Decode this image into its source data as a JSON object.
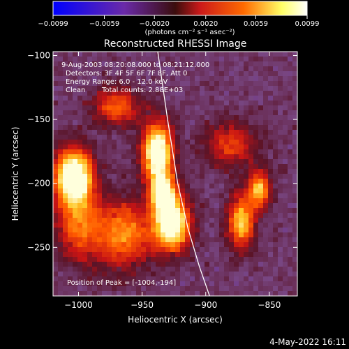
{
  "chart_data": {
    "type": "heatmap",
    "title": "Reconstructed RHESSI Image",
    "xlabel": "Heliocentric X (arcsec)",
    "ylabel": "Heliocentric Y (arcsec)",
    "xlim": [
      -1020,
      -828
    ],
    "ylim": [
      -288,
      -97
    ],
    "x_ticks": [
      -1000,
      -950,
      -900,
      -850
    ],
    "y_ticks": [
      -100,
      -150,
      -200,
      -250
    ],
    "x_tick_labels": [
      "−1000",
      "−950",
      "−900",
      "−850"
    ],
    "y_tick_labels": [
      "−100",
      "−150",
      "−200",
      "−250"
    ],
    "colorbar": {
      "range": [
        -0.0099,
        0.0099
      ],
      "ticks": [
        -0.0099,
        -0.0059,
        -0.002,
        0.002,
        0.0059,
        0.0099
      ],
      "tick_labels": [
        "−0.0099",
        "−0.0059",
        "−0.0020",
        "0.0020",
        "0.0059",
        "0.0099"
      ],
      "units_label": "(photons cm⁻² s⁻¹ asec⁻²)",
      "colors": [
        "#0000ff",
        "#6a2aa8",
        "#cc1a1a",
        "#ff6a00",
        "#ffff66",
        "#ffffff"
      ]
    },
    "annotations": [
      "9-Aug-2003 08:20:08.000 to 08:21:12.000",
      "Detectors: 3F 4F 5F 6F 7F 8F, Att 0",
      "Energy Range: 6.0 - 12.0 keV",
      "Clean",
      "Total counts: 2.88E+03",
      "Position of Peak = [-1004,-194]"
    ],
    "limb_line": {
      "x": [
        -938,
        -930,
        -922,
        -914,
        -905,
        -897
      ],
      "y": [
        -95,
        -150,
        -200,
        -235,
        -265,
        -288
      ]
    },
    "bright_sources": [
      {
        "x": -1004,
        "y": -194,
        "sx": 10,
        "sy": 14,
        "amp": 1.0
      },
      {
        "x": -938,
        "y": -176,
        "sx": 8,
        "sy": 16,
        "amp": 0.95
      },
      {
        "x": -927,
        "y": -232,
        "sx": 10,
        "sy": 14,
        "amp": 0.9
      },
      {
        "x": -933,
        "y": -208,
        "sx": 7,
        "sy": 10,
        "amp": 0.75
      },
      {
        "x": -872,
        "y": -230,
        "sx": 7,
        "sy": 14,
        "amp": 0.65
      },
      {
        "x": -858,
        "y": -205,
        "sx": 6,
        "sy": 10,
        "amp": 0.6
      },
      {
        "x": -970,
        "y": -140,
        "sx": 12,
        "sy": 10,
        "amp": 0.45
      },
      {
        "x": -965,
        "y": -240,
        "sx": 16,
        "sy": 18,
        "amp": 0.5
      },
      {
        "x": -1000,
        "y": -230,
        "sx": 12,
        "sy": 20,
        "amp": 0.45
      },
      {
        "x": -880,
        "y": -170,
        "sx": 14,
        "sy": 12,
        "amp": 0.35
      }
    ]
  },
  "footer": {
    "date": "4-May-2022 16:11"
  }
}
